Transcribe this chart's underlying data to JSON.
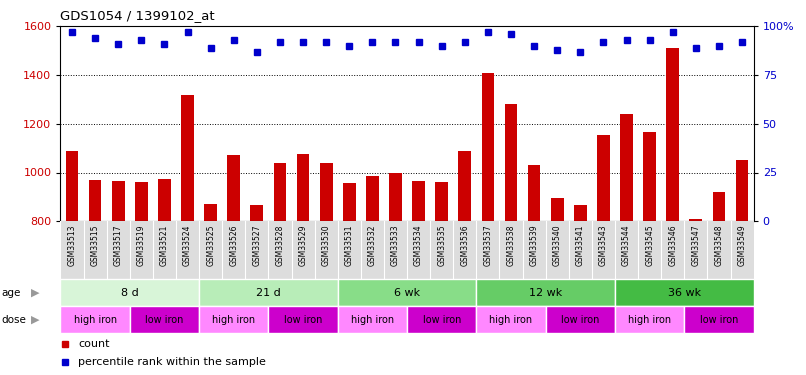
{
  "title": "GDS1054 / 1399102_at",
  "samples": [
    "GSM33513",
    "GSM33515",
    "GSM33517",
    "GSM33519",
    "GSM33521",
    "GSM33524",
    "GSM33525",
    "GSM33526",
    "GSM33527",
    "GSM33528",
    "GSM33529",
    "GSM33530",
    "GSM33531",
    "GSM33532",
    "GSM33533",
    "GSM33534",
    "GSM33535",
    "GSM33536",
    "GSM33537",
    "GSM33538",
    "GSM33539",
    "GSM33540",
    "GSM33541",
    "GSM33543",
    "GSM33544",
    "GSM33545",
    "GSM33546",
    "GSM33547",
    "GSM33548",
    "GSM33549"
  ],
  "counts": [
    1090,
    970,
    965,
    960,
    975,
    1320,
    870,
    1070,
    865,
    1040,
    1075,
    1040,
    955,
    985,
    1000,
    965,
    960,
    1090,
    1410,
    1280,
    1030,
    895,
    865,
    1155,
    1240,
    1165,
    1510,
    810,
    920,
    1050
  ],
  "percentile": [
    97,
    94,
    91,
    93,
    91,
    97,
    89,
    93,
    87,
    92,
    92,
    92,
    90,
    92,
    92,
    92,
    90,
    92,
    97,
    96,
    90,
    88,
    87,
    92,
    93,
    93,
    97,
    89,
    90,
    92
  ],
  "ylim_left": [
    800,
    1600
  ],
  "ylim_right": [
    0,
    100
  ],
  "yticks_left": [
    800,
    1000,
    1200,
    1400,
    1600
  ],
  "ytick_labels_left": [
    "800",
    "1000",
    "1200",
    "1400",
    "1600"
  ],
  "yticks_right": [
    0,
    25,
    50,
    75,
    100
  ],
  "ytick_labels_right": [
    "0",
    "25",
    "50",
    "75",
    "100%"
  ],
  "bar_color": "#cc0000",
  "dot_color": "#0000cc",
  "age_groups": [
    {
      "label": "8 d",
      "start": 0,
      "end": 6,
      "color": "#d8f5d8"
    },
    {
      "label": "21 d",
      "start": 6,
      "end": 12,
      "color": "#b8edb8"
    },
    {
      "label": "6 wk",
      "start": 12,
      "end": 18,
      "color": "#88dd88"
    },
    {
      "label": "12 wk",
      "start": 18,
      "end": 24,
      "color": "#66cc66"
    },
    {
      "label": "36 wk",
      "start": 24,
      "end": 30,
      "color": "#44bb44"
    }
  ],
  "dose_groups": [
    {
      "label": "high iron",
      "start": 0,
      "end": 3,
      "color": "#ff88ff"
    },
    {
      "label": "low iron",
      "start": 3,
      "end": 6,
      "color": "#cc00cc"
    },
    {
      "label": "high iron",
      "start": 6,
      "end": 9,
      "color": "#ff88ff"
    },
    {
      "label": "low iron",
      "start": 9,
      "end": 12,
      "color": "#cc00cc"
    },
    {
      "label": "high iron",
      "start": 12,
      "end": 15,
      "color": "#ff88ff"
    },
    {
      "label": "low iron",
      "start": 15,
      "end": 18,
      "color": "#cc00cc"
    },
    {
      "label": "high iron",
      "start": 18,
      "end": 21,
      "color": "#ff88ff"
    },
    {
      "label": "low iron",
      "start": 21,
      "end": 24,
      "color": "#cc00cc"
    },
    {
      "label": "high iron",
      "start": 24,
      "end": 27,
      "color": "#ff88ff"
    },
    {
      "label": "low iron",
      "start": 27,
      "end": 30,
      "color": "#cc00cc"
    }
  ],
  "background_color": "#ffffff"
}
